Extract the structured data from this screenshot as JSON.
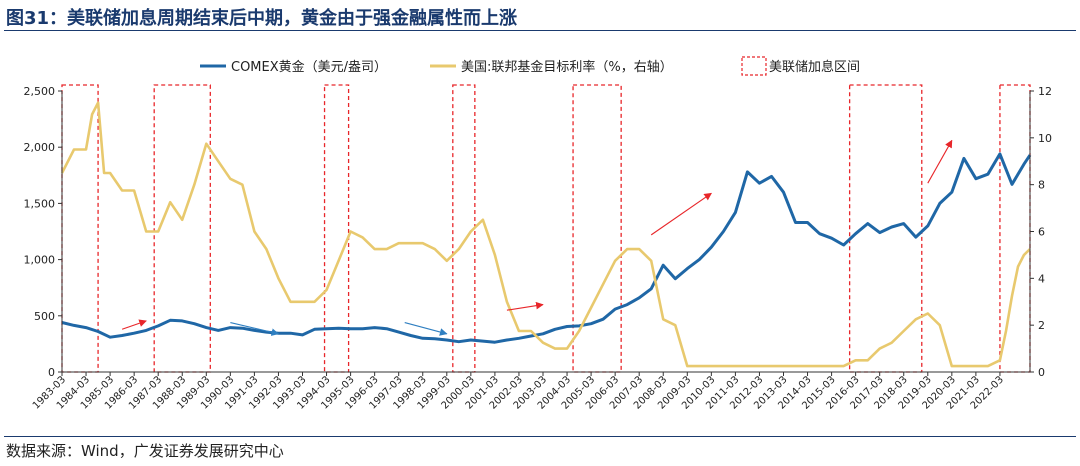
{
  "figure": {
    "title": "图31：美联储加息周期结束后中期，黄金由于强金融属性而上涨",
    "source": "数据来源：Wind，广发证券发展研究中心"
  },
  "chart_data": {
    "type": "line",
    "legend_position": "top",
    "grid": false,
    "x_axis": {
      "start": "1983-03",
      "end": "2023-06",
      "tick_labels": [
        "1983-03",
        "1984-03",
        "1985-03",
        "1986-03",
        "1987-03",
        "1988-03",
        "1989-03",
        "1990-03",
        "1991-03",
        "1992-03",
        "1993-03",
        "1994-03",
        "1995-03",
        "1996-03",
        "1997-03",
        "1998-03",
        "1999-03",
        "2000-03",
        "2001-03",
        "2002-03",
        "2003-03",
        "2004-03",
        "2005-03",
        "2006-03",
        "2007-03",
        "2008-03",
        "2009-03",
        "2010-03",
        "2011-03",
        "2012-03",
        "2013-03",
        "2014-03",
        "2015-03",
        "2016-03",
        "2017-03",
        "2018-03",
        "2019-03",
        "2020-03",
        "2021-03",
        "2022-03"
      ]
    },
    "y_left": {
      "min": 0,
      "max": 2500,
      "ticks": [
        0,
        500,
        1000,
        1500,
        2000,
        2500
      ],
      "tick_labels": [
        "0",
        "500",
        "1,000",
        "1,500",
        "2,000",
        "2,500"
      ]
    },
    "y_right": {
      "min": 0,
      "max": 12,
      "ticks": [
        0,
        2,
        4,
        6,
        8,
        10,
        12
      ],
      "tick_labels": [
        "0",
        "2",
        "4",
        "6",
        "8",
        "10",
        "12"
      ]
    },
    "series": [
      {
        "name": "COMEX黄金（美元/盎司）",
        "axis": "left",
        "color": "#1f67a6",
        "points": [
          [
            "1983-03",
            440
          ],
          [
            "1983-09",
            415
          ],
          [
            "1984-03",
            395
          ],
          [
            "1984-09",
            360
          ],
          [
            "1985-03",
            310
          ],
          [
            "1985-09",
            325
          ],
          [
            "1986-03",
            345
          ],
          [
            "1986-09",
            370
          ],
          [
            "1987-03",
            410
          ],
          [
            "1987-09",
            460
          ],
          [
            "1988-03",
            455
          ],
          [
            "1988-09",
            430
          ],
          [
            "1989-03",
            395
          ],
          [
            "1989-09",
            370
          ],
          [
            "1990-03",
            395
          ],
          [
            "1990-09",
            390
          ],
          [
            "1991-03",
            370
          ],
          [
            "1991-09",
            355
          ],
          [
            "1992-03",
            345
          ],
          [
            "1992-09",
            345
          ],
          [
            "1993-03",
            330
          ],
          [
            "1993-09",
            380
          ],
          [
            "1994-03",
            385
          ],
          [
            "1994-09",
            390
          ],
          [
            "1995-03",
            385
          ],
          [
            "1995-09",
            385
          ],
          [
            "1996-03",
            395
          ],
          [
            "1996-09",
            385
          ],
          [
            "1997-03",
            355
          ],
          [
            "1997-09",
            325
          ],
          [
            "1998-03",
            300
          ],
          [
            "1998-09",
            295
          ],
          [
            "1999-03",
            285
          ],
          [
            "1999-09",
            270
          ],
          [
            "2000-03",
            285
          ],
          [
            "2000-09",
            275
          ],
          [
            "2001-03",
            265
          ],
          [
            "2001-09",
            285
          ],
          [
            "2002-03",
            300
          ],
          [
            "2002-09",
            320
          ],
          [
            "2003-03",
            340
          ],
          [
            "2003-09",
            380
          ],
          [
            "2004-03",
            405
          ],
          [
            "2004-09",
            410
          ],
          [
            "2005-03",
            430
          ],
          [
            "2005-09",
            470
          ],
          [
            "2006-03",
            560
          ],
          [
            "2006-09",
            600
          ],
          [
            "2007-03",
            660
          ],
          [
            "2007-09",
            740
          ],
          [
            "2008-03",
            950
          ],
          [
            "2008-09",
            830
          ],
          [
            "2009-03",
            920
          ],
          [
            "2009-09",
            1000
          ],
          [
            "2010-03",
            1110
          ],
          [
            "2010-09",
            1250
          ],
          [
            "2011-03",
            1420
          ],
          [
            "2011-09",
            1780
          ],
          [
            "2012-03",
            1680
          ],
          [
            "2012-09",
            1740
          ],
          [
            "2013-03",
            1600
          ],
          [
            "2013-09",
            1330
          ],
          [
            "2014-03",
            1330
          ],
          [
            "2014-09",
            1230
          ],
          [
            "2015-03",
            1190
          ],
          [
            "2015-09",
            1130
          ],
          [
            "2016-03",
            1230
          ],
          [
            "2016-09",
            1320
          ],
          [
            "2017-03",
            1240
          ],
          [
            "2017-09",
            1290
          ],
          [
            "2018-03",
            1320
          ],
          [
            "2018-09",
            1200
          ],
          [
            "2019-03",
            1300
          ],
          [
            "2019-09",
            1500
          ],
          [
            "2020-03",
            1600
          ],
          [
            "2020-09",
            1900
          ],
          [
            "2021-03",
            1720
          ],
          [
            "2021-09",
            1760
          ],
          [
            "2022-03",
            1940
          ],
          [
            "2022-09",
            1670
          ],
          [
            "2023-03",
            1850
          ],
          [
            "2023-06",
            1930
          ]
        ]
      },
      {
        "name": "美国:联邦基金目标利率（%，右轴）",
        "axis": "right",
        "color": "#e8c96e",
        "points": [
          [
            "1983-03",
            8.5
          ],
          [
            "1983-09",
            9.5
          ],
          [
            "1984-03",
            9.5
          ],
          [
            "1984-06",
            11.0
          ],
          [
            "1984-09",
            11.5
          ],
          [
            "1984-12",
            8.5
          ],
          [
            "1985-03",
            8.5
          ],
          [
            "1985-09",
            7.75
          ],
          [
            "1986-03",
            7.75
          ],
          [
            "1986-09",
            6.0
          ],
          [
            "1987-03",
            6.0
          ],
          [
            "1987-09",
            7.25
          ],
          [
            "1988-03",
            6.5
          ],
          [
            "1988-09",
            8.0
          ],
          [
            "1989-03",
            9.75
          ],
          [
            "1989-09",
            9.0
          ],
          [
            "1990-03",
            8.25
          ],
          [
            "1990-09",
            8.0
          ],
          [
            "1991-03",
            6.0
          ],
          [
            "1991-09",
            5.25
          ],
          [
            "1992-03",
            4.0
          ],
          [
            "1992-09",
            3.0
          ],
          [
            "1993-03",
            3.0
          ],
          [
            "1993-09",
            3.0
          ],
          [
            "1994-03",
            3.5
          ],
          [
            "1994-09",
            4.75
          ],
          [
            "1995-03",
            6.0
          ],
          [
            "1995-09",
            5.75
          ],
          [
            "1996-03",
            5.25
          ],
          [
            "1996-09",
            5.25
          ],
          [
            "1997-03",
            5.5
          ],
          [
            "1997-09",
            5.5
          ],
          [
            "1998-03",
            5.5
          ],
          [
            "1998-09",
            5.25
          ],
          [
            "1999-03",
            4.75
          ],
          [
            "1999-09",
            5.25
          ],
          [
            "2000-03",
            6.0
          ],
          [
            "2000-09",
            6.5
          ],
          [
            "2001-03",
            5.0
          ],
          [
            "2001-09",
            3.0
          ],
          [
            "2002-03",
            1.75
          ],
          [
            "2002-09",
            1.75
          ],
          [
            "2003-03",
            1.25
          ],
          [
            "2003-09",
            1.0
          ],
          [
            "2004-03",
            1.0
          ],
          [
            "2004-09",
            1.75
          ],
          [
            "2005-03",
            2.75
          ],
          [
            "2005-09",
            3.75
          ],
          [
            "2006-03",
            4.75
          ],
          [
            "2006-09",
            5.25
          ],
          [
            "2007-03",
            5.25
          ],
          [
            "2007-09",
            4.75
          ],
          [
            "2008-03",
            2.25
          ],
          [
            "2008-09",
            2.0
          ],
          [
            "2009-03",
            0.25
          ],
          [
            "2009-09",
            0.25
          ],
          [
            "2010-03",
            0.25
          ],
          [
            "2011-03",
            0.25
          ],
          [
            "2012-03",
            0.25
          ],
          [
            "2013-03",
            0.25
          ],
          [
            "2014-03",
            0.25
          ],
          [
            "2015-03",
            0.25
          ],
          [
            "2015-09",
            0.25
          ],
          [
            "2016-03",
            0.5
          ],
          [
            "2016-09",
            0.5
          ],
          [
            "2017-03",
            1.0
          ],
          [
            "2017-09",
            1.25
          ],
          [
            "2018-03",
            1.75
          ],
          [
            "2018-09",
            2.25
          ],
          [
            "2019-03",
            2.5
          ],
          [
            "2019-09",
            2.0
          ],
          [
            "2020-03",
            0.25
          ],
          [
            "2020-09",
            0.25
          ],
          [
            "2021-03",
            0.25
          ],
          [
            "2021-09",
            0.25
          ],
          [
            "2022-03",
            0.5
          ],
          [
            "2022-06",
            1.75
          ],
          [
            "2022-09",
            3.25
          ],
          [
            "2022-12",
            4.5
          ],
          [
            "2023-03",
            5.0
          ],
          [
            "2023-06",
            5.25
          ]
        ]
      }
    ],
    "highlight_legend": "美联储加息区间",
    "highlight_color": "#e8262a",
    "hike_periods": [
      [
        "1983-03",
        "1984-09"
      ],
      [
        "1987-01",
        "1989-05"
      ],
      [
        "1994-02",
        "1995-02"
      ],
      [
        "1999-06",
        "2000-05"
      ],
      [
        "2004-06",
        "2006-06"
      ],
      [
        "2015-12",
        "2018-12"
      ],
      [
        "2022-03",
        "2023-06"
      ]
    ],
    "trend_arrows": [
      {
        "from": [
          "1985-09",
          380
        ],
        "to": [
          "1986-09",
          455
        ],
        "color": "#e8262a"
      },
      {
        "from": [
          "1990-03",
          440
        ],
        "to": [
          "1992-03",
          340
        ],
        "color": "#2f7fc1"
      },
      {
        "from": [
          "1997-06",
          440
        ],
        "to": [
          "1999-03",
          340
        ],
        "color": "#2f7fc1"
      },
      {
        "from": [
          "2001-09",
          550
        ],
        "to": [
          "2003-03",
          600
        ],
        "color": "#e8262a"
      },
      {
        "from": [
          "2007-09",
          1220
        ],
        "to": [
          "2010-03",
          1590
        ],
        "color": "#e8262a"
      },
      {
        "from": [
          "2019-03",
          1680
        ],
        "to": [
          "2020-03",
          2060
        ],
        "color": "#e8262a"
      }
    ]
  }
}
